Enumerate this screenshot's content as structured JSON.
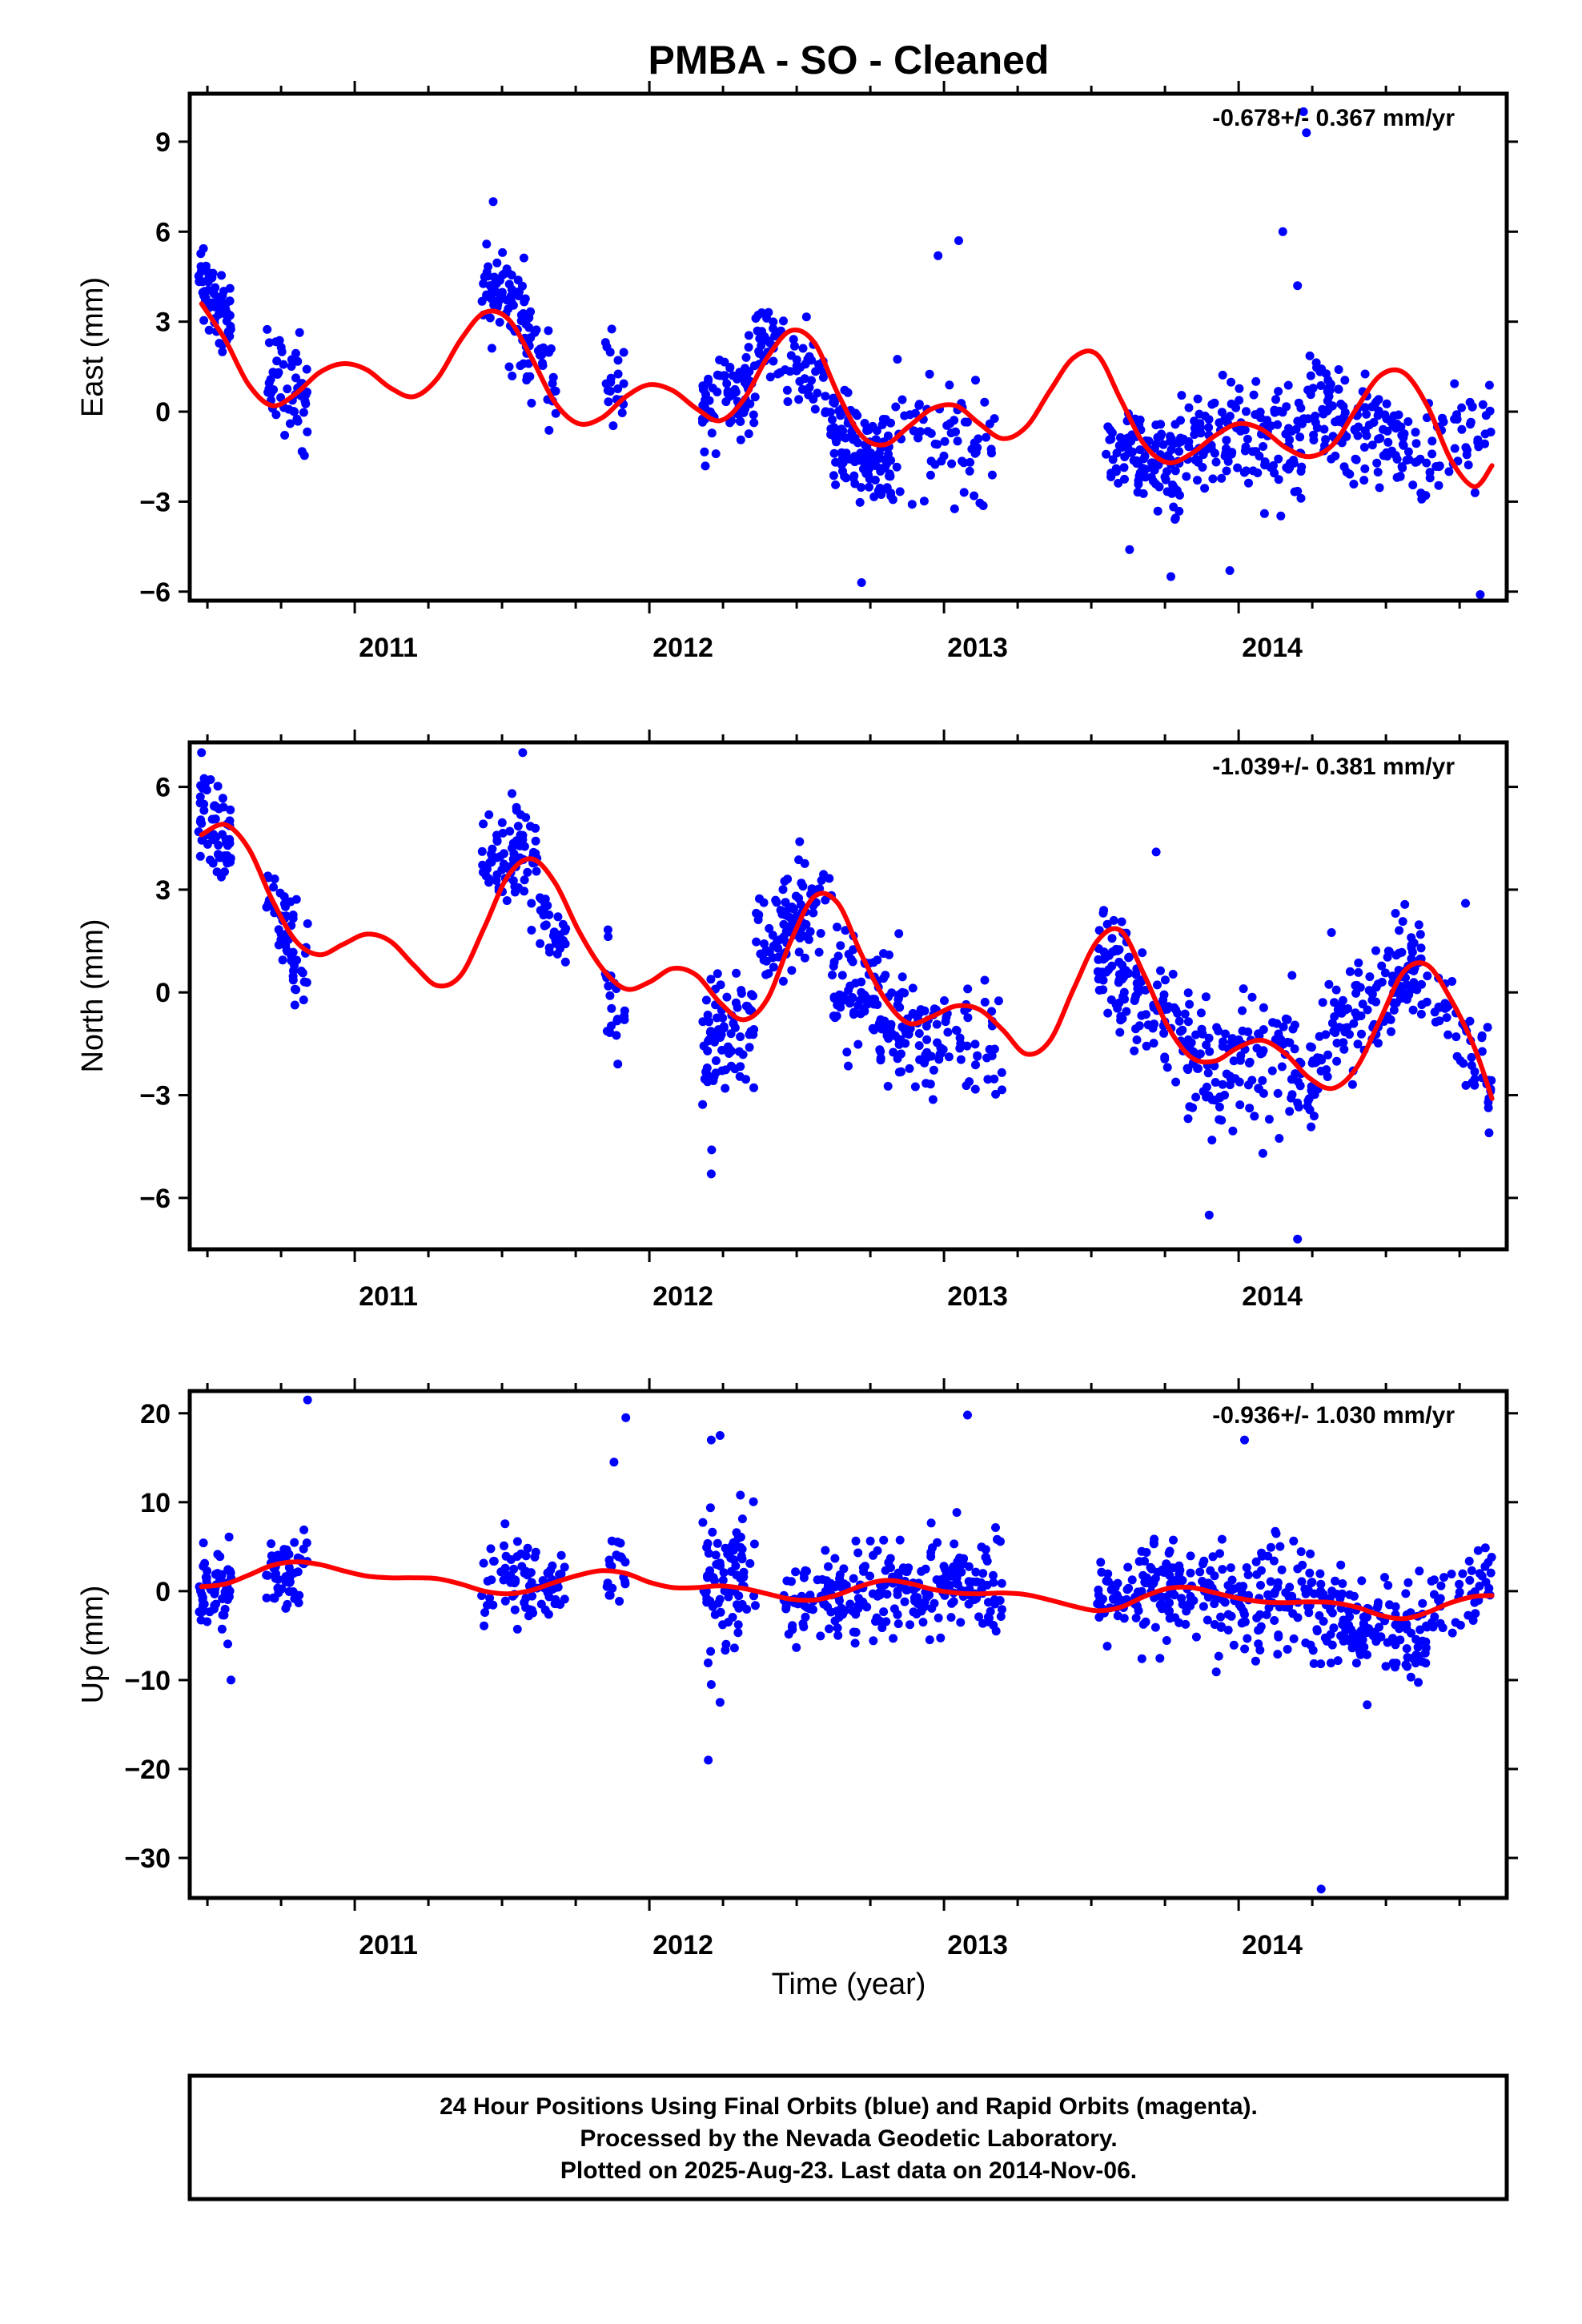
{
  "title": "PMBA  - SO - Cleaned",
  "xlabel": "Time (year)",
  "footer": {
    "line1": "24 Hour Positions Using Final Orbits (blue) and Rapid Orbits (magenta).",
    "line2": "Processed by the Nevada Geodetic Laboratory.",
    "line3": "Plotted on 2025-Aug-23. Last data on 2014-Nov-06."
  },
  "colors": {
    "data_points": "#0000ff",
    "model_curve": "#ff0000",
    "axis": "#000000",
    "background": "#ffffff"
  },
  "chart_data": [
    {
      "type": "scatter",
      "panel": "east",
      "ylabel": "East (mm)",
      "rate_label": "-0.678+/- 0.367 mm/yr",
      "xlim": [
        2010.44,
        2014.91
      ],
      "ylim": [
        -6.3,
        10.6
      ],
      "yticks": [
        -6,
        -3,
        0,
        3,
        6,
        9
      ],
      "xticks": [
        2011,
        2012,
        2013,
        2014
      ],
      "xtick_labels": [
        "2011",
        "2012",
        "2013",
        "2014"
      ],
      "grid": false,
      "series": [
        {
          "role": "daily positions",
          "clusters": [
            {
              "x0": 2010.47,
              "x1": 2010.58,
              "n": 60,
              "trend": [
                4.5,
                2.8
              ],
              "spread": 0.9
            },
            {
              "x0": 2010.7,
              "x1": 2010.84,
              "n": 55,
              "trend": [
                1.5,
                0.5
              ],
              "spread": 1.2
            },
            {
              "x0": 2011.43,
              "x1": 2011.58,
              "n": 70,
              "trend": [
                4.2,
                3.0
              ],
              "spread": 1.0
            },
            {
              "x0": 2011.58,
              "x1": 2011.7,
              "n": 35,
              "trend": [
                2.5,
                0.5
              ],
              "spread": 1.0
            },
            {
              "x0": 2011.85,
              "x1": 2011.92,
              "n": 20,
              "trend": [
                1.0,
                0.8
              ],
              "spread": 1.2
            },
            {
              "x0": 2012.18,
              "x1": 2012.36,
              "n": 80,
              "trend": [
                0.2,
                0.8
              ],
              "spread": 1.2
            },
            {
              "x0": 2012.36,
              "x1": 2012.6,
              "n": 70,
              "trend": [
                2.5,
                0.8
              ],
              "spread": 0.9
            },
            {
              "x0": 2012.6,
              "x1": 2012.82,
              "n": 130,
              "trend": [
                -0.5,
                -2.0
              ],
              "spread": 1.0
            },
            {
              "x0": 2012.82,
              "x1": 2013.18,
              "n": 70,
              "trend": [
                -0.6,
                -1.2
              ],
              "spread": 1.4
            },
            {
              "x0": 2013.54,
              "x1": 2013.8,
              "n": 110,
              "trend": [
                -1.0,
                -2.0
              ],
              "spread": 1.0
            },
            {
              "x0": 2013.8,
              "x1": 2014.22,
              "n": 140,
              "trend": [
                -0.8,
                -1.0
              ],
              "spread": 1.3
            },
            {
              "x0": 2014.22,
              "x1": 2014.64,
              "n": 140,
              "trend": [
                0.5,
                -1.5
              ],
              "spread": 1.2
            },
            {
              "x0": 2014.64,
              "x1": 2014.86,
              "n": 45,
              "trend": [
                -1.5,
                -0.5
              ],
              "spread": 1.2
            }
          ],
          "outliers": [
            [
              2011.47,
              7.0
            ],
            [
              2013.97,
              -5.3
            ],
            [
              2014.23,
              9.3
            ],
            [
              2014.22,
              10.0
            ],
            [
              2014.2,
              4.2
            ],
            [
              2014.15,
              6.0
            ],
            [
              2013.05,
              5.7
            ],
            [
              2012.98,
              5.2
            ],
            [
              2012.72,
              -5.7
            ],
            [
              2014.82,
              -6.1
            ],
            [
              2013.63,
              -4.6
            ],
            [
              2013.77,
              -5.5
            ]
          ]
        },
        {
          "role": "model fit",
          "x": [
            2010.48,
            2010.56,
            2010.64,
            2010.72,
            2010.8,
            2010.88,
            2010.96,
            2011.04,
            2011.12,
            2011.2,
            2011.28,
            2011.36,
            2011.44,
            2011.52,
            2011.6,
            2011.68,
            2011.76,
            2011.84,
            2011.92,
            2012.0,
            2012.08,
            2012.16,
            2012.24,
            2012.32,
            2012.4,
            2012.48,
            2012.56,
            2012.64,
            2012.72,
            2012.8,
            2012.88,
            2012.96,
            2013.04,
            2013.12,
            2013.2,
            2013.28,
            2013.36,
            2013.44,
            2013.52,
            2013.6,
            2013.68,
            2013.76,
            2013.84,
            2013.92,
            2014.0,
            2014.08,
            2014.16,
            2014.24,
            2014.32,
            2014.4,
            2014.48,
            2014.56,
            2014.64,
            2014.72,
            2014.8,
            2014.86
          ],
          "y": [
            3.6,
            2.4,
            0.9,
            0.2,
            0.6,
            1.3,
            1.6,
            1.4,
            0.8,
            0.5,
            1.1,
            2.4,
            3.3,
            3.1,
            1.8,
            0.3,
            -0.4,
            -0.2,
            0.5,
            0.9,
            0.7,
            0.1,
            -0.3,
            0.4,
            1.8,
            2.7,
            2.3,
            0.6,
            -0.8,
            -1.1,
            -0.5,
            0.1,
            0.2,
            -0.4,
            -0.9,
            -0.5,
            0.7,
            1.8,
            1.9,
            0.4,
            -1.1,
            -1.7,
            -1.4,
            -0.8,
            -0.4,
            -0.6,
            -1.2,
            -1.5,
            -1.1,
            0.1,
            1.2,
            1.3,
            0.2,
            -1.6,
            -2.5,
            -1.8
          ]
        }
      ]
    },
    {
      "type": "scatter",
      "panel": "north",
      "ylabel": "North (mm)",
      "rate_label": "-1.039+/- 0.381 mm/yr",
      "xlim": [
        2010.44,
        2014.91
      ],
      "ylim": [
        -7.5,
        7.3
      ],
      "yticks": [
        -6,
        -3,
        0,
        3,
        6
      ],
      "xticks": [
        2011,
        2012,
        2013,
        2014
      ],
      "xtick_labels": [
        "2011",
        "2012",
        "2013",
        "2014"
      ],
      "grid": false,
      "series": [
        {
          "role": "daily positions",
          "clusters": [
            {
              "x0": 2010.47,
              "x1": 2010.58,
              "n": 60,
              "trend": [
                5.5,
                4.2
              ],
              "spread": 0.9
            },
            {
              "x0": 2010.7,
              "x1": 2010.84,
              "n": 55,
              "trend": [
                3.0,
                0.5
              ],
              "spread": 0.9
            },
            {
              "x0": 2011.43,
              "x1": 2011.62,
              "n": 80,
              "trend": [
                3.8,
                4.0
              ],
              "spread": 0.8
            },
            {
              "x0": 2011.62,
              "x1": 2011.72,
              "n": 30,
              "trend": [
                2.5,
                1.5
              ],
              "spread": 0.8
            },
            {
              "x0": 2011.85,
              "x1": 2011.92,
              "n": 20,
              "trend": [
                0.5,
                -1.5
              ],
              "spread": 1.2
            },
            {
              "x0": 2012.18,
              "x1": 2012.36,
              "n": 80,
              "trend": [
                -1.5,
                -1.0
              ],
              "spread": 1.4
            },
            {
              "x0": 2012.36,
              "x1": 2012.62,
              "n": 90,
              "trend": [
                1.5,
                2.5
              ],
              "spread": 0.9
            },
            {
              "x0": 2012.62,
              "x1": 2013.0,
              "n": 150,
              "trend": [
                0.2,
                -1.6
              ],
              "spread": 1.1
            },
            {
              "x0": 2013.0,
              "x1": 2013.2,
              "n": 40,
              "trend": [
                -1.0,
                -1.5
              ],
              "spread": 1.2
            },
            {
              "x0": 2013.52,
              "x1": 2013.8,
              "n": 110,
              "trend": [
                1.2,
                -1.5
              ],
              "spread": 1.2
            },
            {
              "x0": 2013.8,
              "x1": 2014.26,
              "n": 150,
              "trend": [
                -1.8,
                -2.5
              ],
              "spread": 1.3
            },
            {
              "x0": 2014.26,
              "x1": 2014.64,
              "n": 130,
              "trend": [
                -1.5,
                1.0
              ],
              "spread": 1.2
            },
            {
              "x0": 2014.64,
              "x1": 2014.86,
              "n": 45,
              "trend": [
                0.5,
                -3.0
              ],
              "spread": 1.0
            }
          ],
          "outliers": [
            [
              2011.57,
              7.0
            ],
            [
              2010.48,
              7.0
            ],
            [
              2012.21,
              -5.3
            ],
            [
              2013.9,
              -6.5
            ],
            [
              2014.2,
              -7.2
            ],
            [
              2013.72,
              4.1
            ],
            [
              2014.77,
              2.6
            ],
            [
              2012.51,
              4.4
            ],
            [
              2014.85,
              -4.1
            ]
          ]
        },
        {
          "role": "model fit",
          "x": [
            2010.48,
            2010.56,
            2010.64,
            2010.72,
            2010.8,
            2010.88,
            2010.96,
            2011.04,
            2011.12,
            2011.2,
            2011.28,
            2011.36,
            2011.44,
            2011.52,
            2011.6,
            2011.68,
            2011.76,
            2011.84,
            2011.92,
            2012.0,
            2012.08,
            2012.16,
            2012.24,
            2012.32,
            2012.4,
            2012.48,
            2012.56,
            2012.64,
            2012.72,
            2012.8,
            2012.88,
            2012.96,
            2013.04,
            2013.12,
            2013.2,
            2013.28,
            2013.36,
            2013.44,
            2013.52,
            2013.6,
            2013.68,
            2013.76,
            2013.84,
            2013.92,
            2014.0,
            2014.08,
            2014.16,
            2014.24,
            2014.32,
            2014.4,
            2014.48,
            2014.56,
            2014.64,
            2014.72,
            2014.8,
            2014.86
          ],
          "y": [
            4.6,
            4.9,
            4.2,
            2.7,
            1.5,
            1.1,
            1.4,
            1.7,
            1.5,
            0.8,
            0.2,
            0.5,
            1.9,
            3.4,
            3.9,
            3.2,
            1.8,
            0.7,
            0.1,
            0.3,
            0.7,
            0.5,
            -0.3,
            -0.8,
            -0.2,
            1.5,
            2.8,
            2.6,
            1.1,
            -0.2,
            -0.9,
            -0.7,
            -0.4,
            -0.5,
            -1.1,
            -1.8,
            -1.4,
            0.1,
            1.5,
            1.8,
            0.5,
            -1.0,
            -1.9,
            -2.0,
            -1.6,
            -1.4,
            -1.8,
            -2.5,
            -2.8,
            -2.2,
            -0.8,
            0.6,
            0.8,
            -0.2,
            -1.6,
            -3.1
          ]
        }
      ]
    },
    {
      "type": "scatter",
      "panel": "up",
      "ylabel": "Up (mm)",
      "rate_label": "-0.936+/- 1.030 mm/yr",
      "xlim": [
        2010.44,
        2014.91
      ],
      "ylim": [
        -34.5,
        22.5
      ],
      "yticks": [
        -30,
        -20,
        -10,
        0,
        10,
        20
      ],
      "xticks": [
        2011,
        2012,
        2013,
        2014
      ],
      "xtick_labels": [
        "2011",
        "2012",
        "2013",
        "2014"
      ],
      "grid": false,
      "series": [
        {
          "role": "daily positions",
          "clusters": [
            {
              "x0": 2010.47,
              "x1": 2010.58,
              "n": 60,
              "trend": [
                0.5,
                0.5
              ],
              "spread": 3.2
            },
            {
              "x0": 2010.7,
              "x1": 2010.84,
              "n": 55,
              "trend": [
                2.5,
                2.0
              ],
              "spread": 2.8
            },
            {
              "x0": 2011.43,
              "x1": 2011.72,
              "n": 90,
              "trend": [
                1.0,
                0.5
              ],
              "spread": 3.0
            },
            {
              "x0": 2011.85,
              "x1": 2011.92,
              "n": 20,
              "trend": [
                2.0,
                2.0
              ],
              "spread": 3.5
            },
            {
              "x0": 2012.18,
              "x1": 2012.36,
              "n": 80,
              "trend": [
                2.0,
                1.0
              ],
              "spread": 4.5
            },
            {
              "x0": 2012.45,
              "x1": 2012.7,
              "n": 80,
              "trend": [
                -1.0,
                -0.5
              ],
              "spread": 3.0
            },
            {
              "x0": 2012.7,
              "x1": 2013.2,
              "n": 180,
              "trend": [
                0.5,
                -0.5
              ],
              "spread": 3.8
            },
            {
              "x0": 2013.52,
              "x1": 2013.8,
              "n": 110,
              "trend": [
                -1.0,
                0.5
              ],
              "spread": 3.5
            },
            {
              "x0": 2013.8,
              "x1": 2014.26,
              "n": 150,
              "trend": [
                0.0,
                -1.5
              ],
              "spread": 4.0
            },
            {
              "x0": 2014.26,
              "x1": 2014.64,
              "n": 140,
              "trend": [
                -2.5,
                -5.5
              ],
              "spread": 3.5
            },
            {
              "x0": 2014.64,
              "x1": 2014.86,
              "n": 45,
              "trend": [
                -3.0,
                1.5
              ],
              "spread": 3.0
            }
          ],
          "outliers": [
            [
              2010.84,
              21.5
            ],
            [
              2011.92,
              19.5
            ],
            [
              2012.21,
              17.0
            ],
            [
              2012.24,
              17.5
            ],
            [
              2013.08,
              19.8
            ],
            [
              2014.02,
              17.0
            ],
            [
              2012.2,
              -19.0
            ],
            [
              2014.28,
              -33.5
            ],
            [
              2012.21,
              -10.5
            ],
            [
              2012.24,
              -12.5
            ],
            [
              2010.58,
              -10.0
            ],
            [
              2011.88,
              14.5
            ]
          ]
        },
        {
          "role": "model fit",
          "x": [
            2010.48,
            2010.56,
            2010.64,
            2010.72,
            2010.8,
            2010.88,
            2010.96,
            2011.04,
            2011.12,
            2011.2,
            2011.28,
            2011.36,
            2011.44,
            2011.52,
            2011.6,
            2011.68,
            2011.76,
            2011.84,
            2011.92,
            2012.0,
            2012.08,
            2012.16,
            2012.24,
            2012.32,
            2012.4,
            2012.48,
            2012.56,
            2012.64,
            2012.72,
            2012.8,
            2012.88,
            2012.96,
            2013.04,
            2013.12,
            2013.2,
            2013.28,
            2013.36,
            2013.44,
            2013.52,
            2013.6,
            2013.68,
            2013.76,
            2013.84,
            2013.92,
            2014.0,
            2014.08,
            2014.16,
            2014.24,
            2014.32,
            2014.4,
            2014.48,
            2014.56,
            2014.64,
            2014.72,
            2014.8,
            2014.86
          ],
          "y": [
            0.5,
            0.8,
            1.8,
            2.9,
            3.3,
            3.0,
            2.3,
            1.7,
            1.5,
            1.5,
            1.4,
            0.8,
            0.0,
            -0.3,
            0.1,
            1.0,
            1.8,
            2.3,
            2.0,
            1.0,
            0.4,
            0.4,
            0.6,
            0.3,
            -0.3,
            -0.9,
            -1.0,
            -0.4,
            0.6,
            1.2,
            0.9,
            0.2,
            -0.2,
            -0.3,
            -0.2,
            -0.4,
            -1.0,
            -1.7,
            -2.2,
            -1.8,
            -0.6,
            0.3,
            0.4,
            -0.2,
            -0.8,
            -1.2,
            -1.3,
            -1.2,
            -1.3,
            -1.8,
            -2.7,
            -3.1,
            -2.4,
            -1.3,
            -0.6,
            -0.5
          ]
        }
      ]
    }
  ]
}
